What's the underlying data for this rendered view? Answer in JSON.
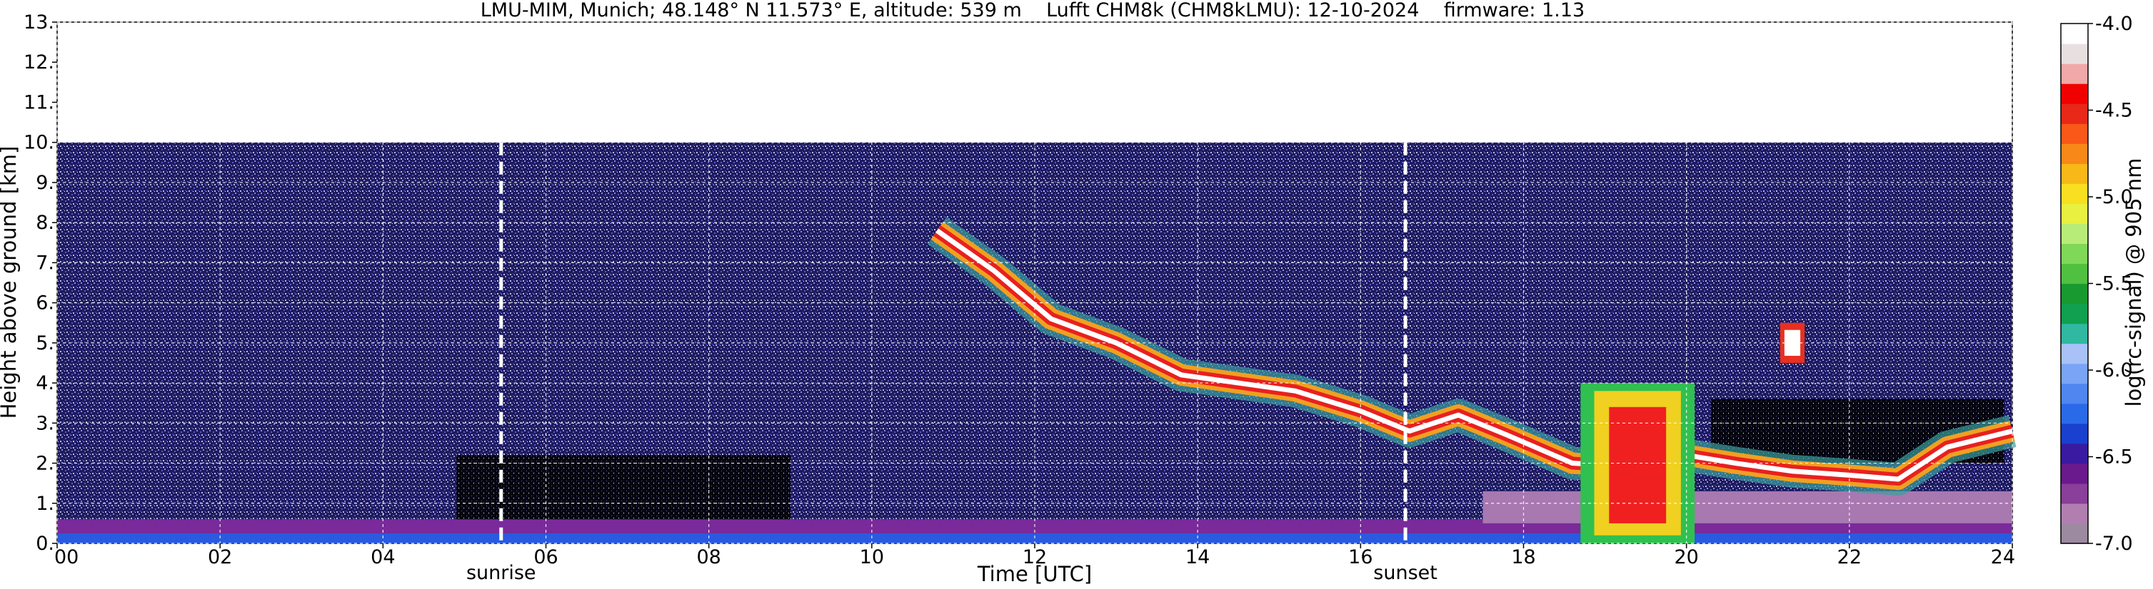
{
  "chart_data": {
    "type": "heatmap",
    "title": "LMU-MIM, Munich; 48.148° N 11.573° E, altitude: 539 m    Lufft CHM8k (CHM8kLMU): 12-10-2024    firmware: 1.13",
    "xlabel": "Time [UTC]",
    "ylabel": "Height above ground [km]",
    "xlim": [
      0,
      24
    ],
    "ylim": [
      0,
      13
    ],
    "x_ticks": [
      "00",
      "02",
      "04",
      "06",
      "08",
      "10",
      "12",
      "14",
      "16",
      "18",
      "20",
      "22",
      "24"
    ],
    "y_ticks": [
      "0.",
      "1.",
      "2.",
      "3.",
      "4.",
      "5.",
      "6.",
      "7.",
      "8.",
      "9.",
      "10.",
      "11.",
      "12.",
      "13."
    ],
    "grid": true,
    "measurement_top_km": 10,
    "markers": [
      {
        "label": "sunrise",
        "time_utc": 5.45
      },
      {
        "label": "sunset",
        "time_utc": 16.55
      }
    ],
    "colorbar": {
      "label": "log(rc-signal) @ 905 nm",
      "range": [
        -7.0,
        -4.0
      ],
      "ticks": [
        "-4.0",
        "-4.5",
        "-5.0",
        "-5.5",
        "-6.0",
        "-6.5",
        "-7.0"
      ],
      "colors": [
        "#9c8aa0",
        "#b07fb0",
        "#8a3f9a",
        "#6a1a8c",
        "#3a1aa0",
        "#1a40d0",
        "#2a6ae8",
        "#4f86f0",
        "#7aa4f6",
        "#a8c2f8",
        "#30b8a0",
        "#10a050",
        "#189a30",
        "#50c040",
        "#80d858",
        "#b8ec78",
        "#e8f040",
        "#f8e020",
        "#f8b818",
        "#f88818",
        "#f85818",
        "#e82818",
        "#f00000",
        "#f0a8a8",
        "#e8e0e0",
        "#ffffff"
      ]
    },
    "layers": [
      {
        "name": "boundary-layer",
        "x_start": 0,
        "x_end": 24,
        "y_top": 0.6
      },
      {
        "name": "cloud-band",
        "points": [
          [
            10.8,
            7.8
          ],
          [
            11.5,
            6.8
          ],
          [
            12.2,
            5.6
          ],
          [
            13,
            5.0
          ],
          [
            13.8,
            4.2
          ],
          [
            14.5,
            4.0
          ],
          [
            15.2,
            3.8
          ],
          [
            16,
            3.3
          ],
          [
            16.6,
            2.8
          ],
          [
            17.2,
            3.2
          ],
          [
            17.8,
            2.7
          ],
          [
            18.6,
            2.0
          ],
          [
            19.4,
            1.9
          ],
          [
            20,
            2.2
          ],
          [
            20.6,
            2.0
          ],
          [
            21.3,
            1.8
          ],
          [
            22,
            1.7
          ],
          [
            22.6,
            1.6
          ],
          [
            23.2,
            2.4
          ],
          [
            24,
            2.8
          ]
        ]
      },
      {
        "name": "convective-cloud",
        "x_start": 18.7,
        "x_end": 20.1,
        "y_bottom": 0,
        "y_top": 4.0
      },
      {
        "name": "isolated-cloud",
        "x_start": 21.15,
        "x_end": 21.45,
        "y_bottom": 4.5,
        "y_top": 5.5
      }
    ]
  }
}
